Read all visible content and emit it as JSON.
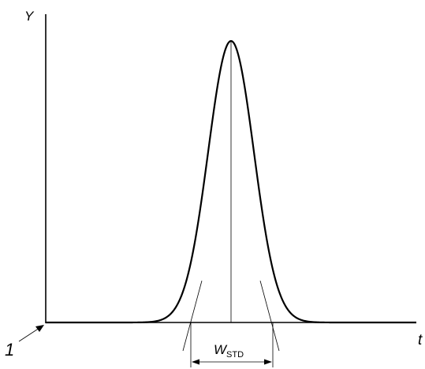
{
  "axes": {
    "y_label": "Y",
    "x_label": "t"
  },
  "origin_marker": "1",
  "width_label": {
    "main": "W",
    "subscript": "STD"
  }
}
